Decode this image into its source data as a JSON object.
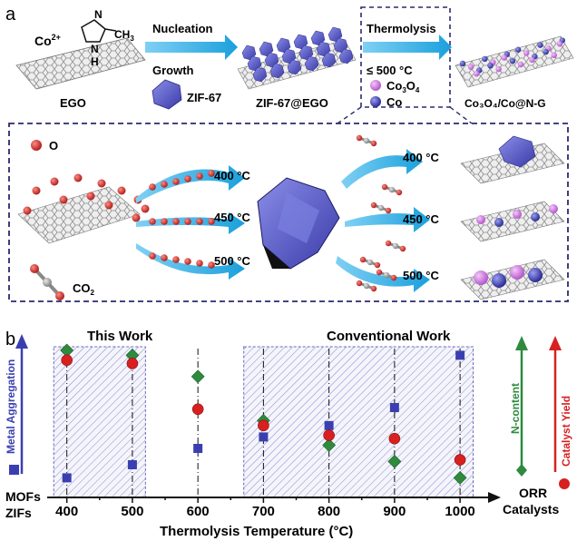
{
  "panel_a": {
    "label": "a",
    "co_ion": "Co",
    "co_charge": "2+",
    "ligand_atom_n": "N",
    "ligand_atom_nh": "N",
    "ligand_atom_h": "H",
    "ligand_ch3": "CH",
    "ligand_ch3_sub": "3",
    "nucleation": "Nucleation",
    "growth": "Growth",
    "ego_label": "EGO",
    "zif67_label": "ZIF-67",
    "zif67ego_label": "ZIF-67@EGO",
    "thermolysis": "Thermolysis",
    "temp_limit": "≤ 500 °C",
    "legend_co3o4": "Co",
    "legend_co3o4_sub1": "3",
    "legend_co3o4_mid": "O",
    "legend_co3o4_sub2": "4",
    "legend_co": "Co",
    "product_label": "Co₃O₄/Co@N-G",
    "o_label": "O",
    "co2_label": "CO",
    "co2_sub": "2",
    "arrows_in": [
      "400 °C",
      "450 °C",
      "500 °C"
    ],
    "arrows_out": [
      "400 °C",
      "450 °C",
      "500 °C"
    ]
  },
  "panel_b": {
    "label": "b",
    "this_work": "This Work",
    "conventional_work": "Conventional Work",
    "left_axis_label": "Metal Aggregation",
    "right_axis_label_n": "N-content",
    "right_axis_label_yield": "Catalyst Yield",
    "left_bottom_1": "MOFs",
    "left_bottom_2": "ZIFs",
    "right_bottom_1": "ORR",
    "right_bottom_2": "Catalysts",
    "x_axis_title": "Thermolysis Temperature (°C)"
  },
  "chart_data": {
    "type": "scatter",
    "x": [
      400,
      500,
      600,
      700,
      800,
      900,
      1000
    ],
    "xlabel": "Thermolysis Temperature (°C)",
    "xlim": [
      370,
      1040
    ],
    "ylim": [
      0,
      10
    ],
    "tick_labels": [
      "400",
      "500",
      "600",
      "700",
      "800",
      "900",
      "1000"
    ],
    "shaded_regions": [
      [
        380,
        520
      ],
      [
        670,
        1020
      ]
    ],
    "series": [
      {
        "name": "Metal Aggregation",
        "marker": "square",
        "color": "#3a3fb0",
        "values": [
          1.2,
          2.0,
          3.0,
          3.7,
          4.4,
          5.5,
          8.7
        ]
      },
      {
        "name": "N-content",
        "marker": "diamond",
        "color": "#2e8b3e",
        "values": [
          9.0,
          8.7,
          7.4,
          4.7,
          3.2,
          2.2,
          1.2
        ]
      },
      {
        "name": "Catalyst Yield",
        "marker": "circle",
        "color": "#d82020",
        "values": [
          8.4,
          8.2,
          5.4,
          4.4,
          3.8,
          3.6,
          2.3
        ]
      }
    ]
  },
  "colors": {
    "arrow_blue": "#29a8e0",
    "frame_navy": "#2a2a6e",
    "hatch_blue": "#6a6ac0",
    "square_blue": "#3a3fb0",
    "diamond_green": "#2e8b3e",
    "circle_red": "#d82020",
    "co3o4_pink": "#c86ad8",
    "co_blue": "#3a3ab8",
    "o_red": "#c0282a"
  }
}
